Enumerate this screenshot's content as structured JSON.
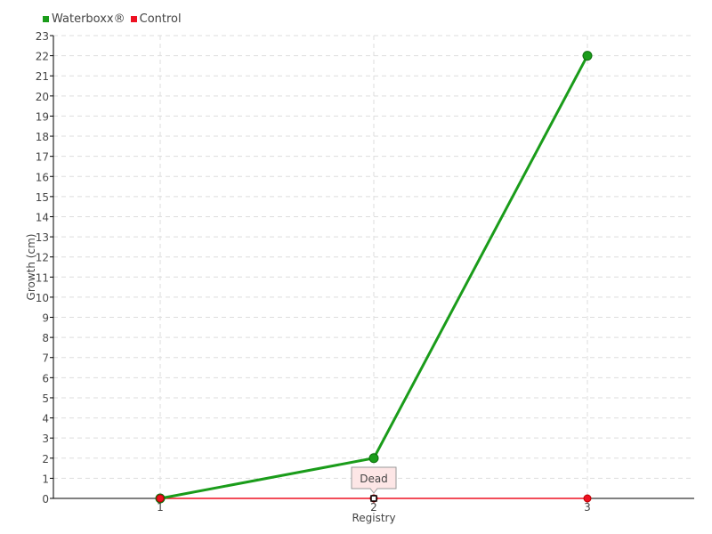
{
  "chart_data": {
    "type": "line",
    "xlabel": "Registry",
    "ylabel": "Growth (cm)",
    "x": [
      1,
      2,
      3
    ],
    "xlim": [
      0.5,
      3.5
    ],
    "ylim": [
      0,
      23
    ],
    "yticks": [
      0,
      1,
      2,
      3,
      4,
      5,
      6,
      7,
      8,
      9,
      10,
      11,
      12,
      13,
      14,
      15,
      16,
      17,
      18,
      19,
      20,
      21,
      22,
      23
    ],
    "xticks": [
      1,
      2,
      3
    ],
    "grid": true,
    "legend_position": "top-left",
    "series": [
      {
        "name": "Waterboxx®",
        "values": [
          0,
          2,
          22
        ],
        "color": "#1a9c1a"
      },
      {
        "name": "Control",
        "values": [
          0,
          0,
          0
        ],
        "color": "#ee1122"
      }
    ],
    "annotations": [
      {
        "x": 2,
        "y": 0,
        "series": "Control",
        "text": "Dead"
      }
    ]
  }
}
